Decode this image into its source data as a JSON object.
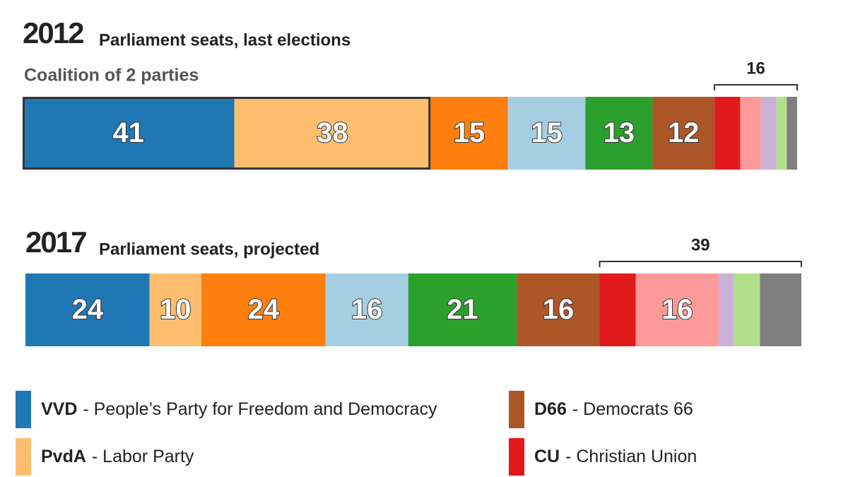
{
  "chart_data": [
    {
      "type": "stacked-bar",
      "year": "2012",
      "title": "Parliament seats, last elections",
      "subtitle": "Coalition of 2 parties",
      "coalition_parties": 2,
      "values": [
        41,
        38,
        15,
        15,
        13,
        12,
        5,
        4,
        3,
        2,
        2
      ],
      "colors": [
        "#1f77b4",
        "#fdbf6f",
        "#ff7f0e",
        "#a6cee3",
        "#2ca02c",
        "#ad5627",
        "#e31a1c",
        "#fb9a99",
        "#cab2d6",
        "#b2df8a",
        "#7f7f7f"
      ],
      "others": 16
    },
    {
      "type": "stacked-bar",
      "year": "2017",
      "title": "Parliament seats, projected",
      "values": [
        24,
        10,
        24,
        16,
        21,
        16,
        7,
        16,
        3,
        5,
        8
      ],
      "colors": [
        "#1f77b4",
        "#fdbf6f",
        "#ff7f0e",
        "#a6cee3",
        "#2ca02c",
        "#ad5627",
        "#e31a1c",
        "#fb9a99",
        "#cab2d6",
        "#b2df8a",
        "#7f7f7f"
      ],
      "others": 39
    }
  ],
  "legend": [
    {
      "abbr": "VVD",
      "description": "- People’s Party for Freedom and Democracy",
      "color": "#1f77b4"
    },
    {
      "abbr": "PvdA",
      "description": "- Labor Party",
      "color": "#fdbf6f"
    },
    {
      "abbr": "D66",
      "description": "- Democrats 66",
      "color": "#ad5627"
    },
    {
      "abbr": "CU",
      "description": "- Christian Union",
      "color": "#e31a1c"
    }
  ]
}
